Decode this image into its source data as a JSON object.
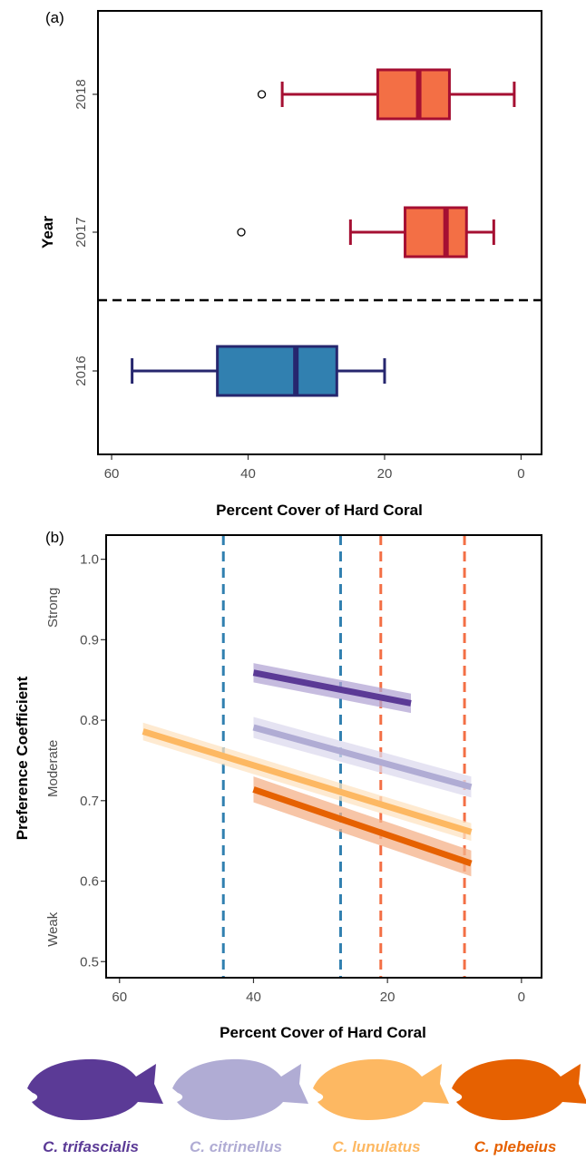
{
  "chart_data": [
    {
      "type": "boxplot",
      "panel_label": "(a)",
      "xlabel": "Percent Cover of Hard Coral",
      "ylabel": "Year",
      "xlim": [
        62,
        -3
      ],
      "x_ticks": [
        60,
        40,
        20,
        0
      ],
      "reversed_x": true,
      "divider": "dashed line between 2016 and 2017",
      "boxes": [
        {
          "year": "2018",
          "min": 1,
          "q1": 10.5,
          "median": 15,
          "q3": 21,
          "max": 35,
          "outliers": [
            38
          ],
          "color": "#f36f45",
          "edge": "#a50f32"
        },
        {
          "year": "2017",
          "min": 4,
          "q1": 8,
          "median": 11,
          "q3": 17,
          "max": 25,
          "outliers": [
            41
          ],
          "color": "#f36f45",
          "edge": "#a50f32"
        },
        {
          "year": "2016",
          "min": 20,
          "q1": 27,
          "median": 33,
          "q3": 44.5,
          "max": 57,
          "outliers": [],
          "color": "#3180b0",
          "edge": "#26266e"
        }
      ]
    },
    {
      "type": "line",
      "panel_label": "(b)",
      "xlabel": "Percent Cover of Hard Coral",
      "ylabel": "Preference Coefficient",
      "xlim": [
        62,
        -3
      ],
      "ylim": [
        0.48,
        1.03
      ],
      "reversed_x": true,
      "x_ticks": [
        60,
        40,
        20,
        0
      ],
      "y_ticks": [
        0.5,
        0.6,
        0.7,
        0.8,
        0.9,
        1.0
      ],
      "y_tick_labels": [
        "0.5",
        "0.6",
        "0.7",
        "0.8",
        "0.9",
        "1.0"
      ],
      "strength_labels": [
        {
          "text": "Strong",
          "y": 0.94
        },
        {
          "text": "Moderate",
          "y": 0.74
        },
        {
          "text": "Weak",
          "y": 0.54
        }
      ],
      "vlines": [
        {
          "x": 44.5,
          "color": "#3180b0"
        },
        {
          "x": 27,
          "color": "#3180b0"
        },
        {
          "x": 21,
          "color": "#f36f45"
        },
        {
          "x": 8.5,
          "color": "#f36f45"
        }
      ],
      "series": [
        {
          "name": "C. trifascialis",
          "color": "#5b3a96",
          "band": "#b3a5d4",
          "x": [
            40,
            16.5
          ],
          "y": [
            0.859,
            0.821
          ],
          "se": 0.012
        },
        {
          "name": "C. citrinellus",
          "color": "#b0acd4",
          "band": "#dcdaee",
          "x": [
            40,
            7.5
          ],
          "y": [
            0.791,
            0.717
          ],
          "se": 0.013
        },
        {
          "name": "C. lunulatus",
          "color": "#fdb862",
          "band": "#fde3c2",
          "x": [
            56.5,
            7.5
          ],
          "y": [
            0.786,
            0.661
          ],
          "se": 0.011
        },
        {
          "name": "C. plebeius",
          "color": "#e66101",
          "band": "#f4b28a",
          "x": [
            40,
            7.5
          ],
          "y": [
            0.714,
            0.622
          ],
          "se": 0.016
        }
      ]
    }
  ],
  "legend": {
    "species": [
      {
        "name": "C. trifascialis",
        "color": "#5b3a96",
        "icon": "fish-silhouette-icon"
      },
      {
        "name": "C. citrinellus",
        "color": "#b0acd4",
        "icon": "fish-silhouette-icon"
      },
      {
        "name": "C. lunulatus",
        "color": "#fdb862",
        "icon": "fish-silhouette-icon"
      },
      {
        "name": "C. plebeius",
        "color": "#e66101",
        "icon": "fish-silhouette-icon"
      }
    ]
  }
}
